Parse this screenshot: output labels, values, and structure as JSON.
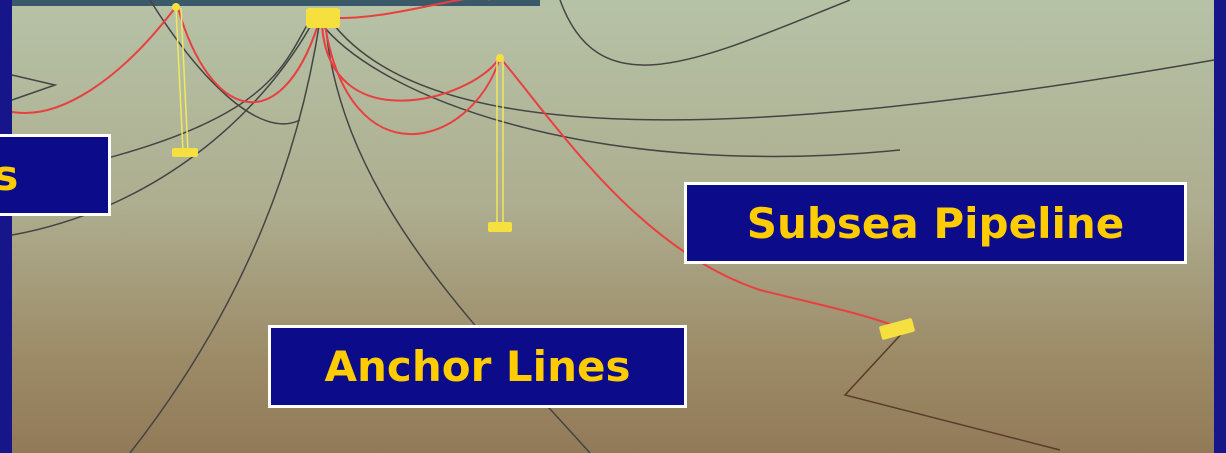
{
  "labels": [
    "rs",
    "Subsea Pipeline",
    "Anchor Lines"
  ]
}
